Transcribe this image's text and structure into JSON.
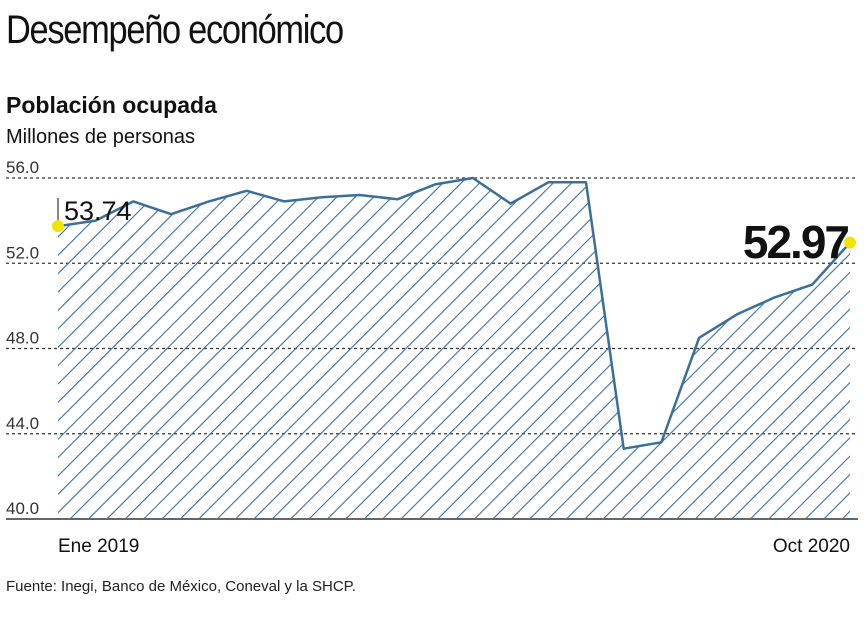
{
  "header": {
    "title": "Desempeño económico",
    "subtitle": "Población ocupada",
    "unit": "Millones de personas"
  },
  "footer": {
    "source": "Fuente: Inegi, Banco de México, Coneval y la SHCP."
  },
  "colors": {
    "line": "#3a6f9c",
    "hatch": "#3a6f9c",
    "marker": "#f2e400",
    "grid": "#333333"
  },
  "chart_data": {
    "type": "area",
    "title": "Población ocupada",
    "ylabel": "Millones de personas",
    "ylim": [
      40.0,
      56.0
    ],
    "yticks": [
      "40.0",
      "44.0",
      "48.0",
      "52.0",
      "56.0"
    ],
    "x_labels": {
      "first": "Ene 2019",
      "last": "Oct 2020"
    },
    "values": [
      53.74,
      54.0,
      54.9,
      54.3,
      54.9,
      55.4,
      54.9,
      55.1,
      55.2,
      55.0,
      55.7,
      56.0,
      54.8,
      55.8,
      55.8,
      43.3,
      43.6,
      48.5,
      49.6,
      50.4,
      51.0,
      52.97
    ],
    "annotations": {
      "start": "53.74",
      "end": "52.97"
    },
    "grid": "horizontal-dotted"
  }
}
